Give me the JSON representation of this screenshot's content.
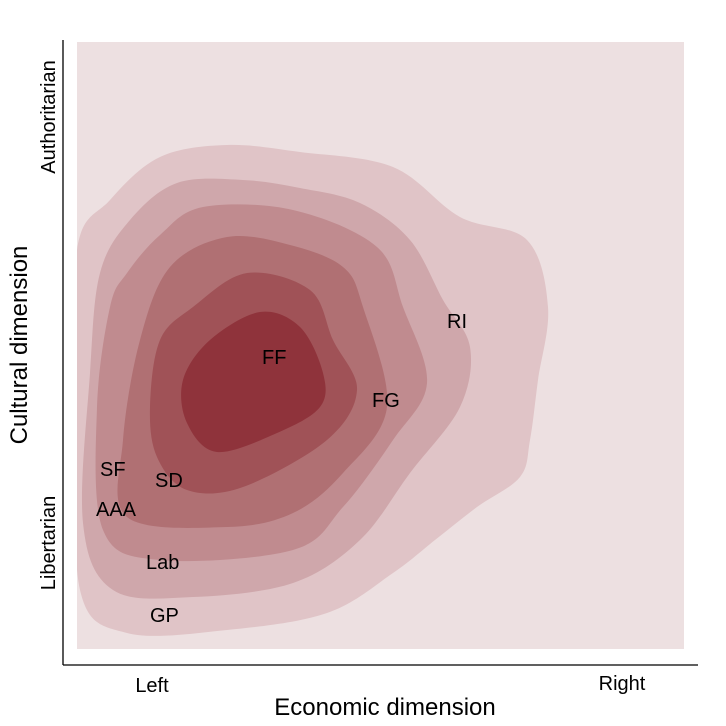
{
  "chart_data": {
    "type": "heatmap",
    "subtype": "2d-density-contour",
    "title": "",
    "xlabel": "Economic dimension",
    "ylabel": "Cultural dimension",
    "x_ticks": [
      "Left",
      "Right"
    ],
    "y_ticks": [
      "Libertarian",
      "Authoritarian"
    ],
    "grid": false,
    "legend": "none",
    "colors": {
      "background": "#ede0e1",
      "levels": [
        "#e0c4c7",
        "#cfa7ab",
        "#c08b8f",
        "#b07073",
        "#a05257",
        "#8f333b"
      ]
    },
    "labels": [
      "FF",
      "FG",
      "RI",
      "SF",
      "SD",
      "AAA",
      "Lab",
      "GP"
    ]
  }
}
